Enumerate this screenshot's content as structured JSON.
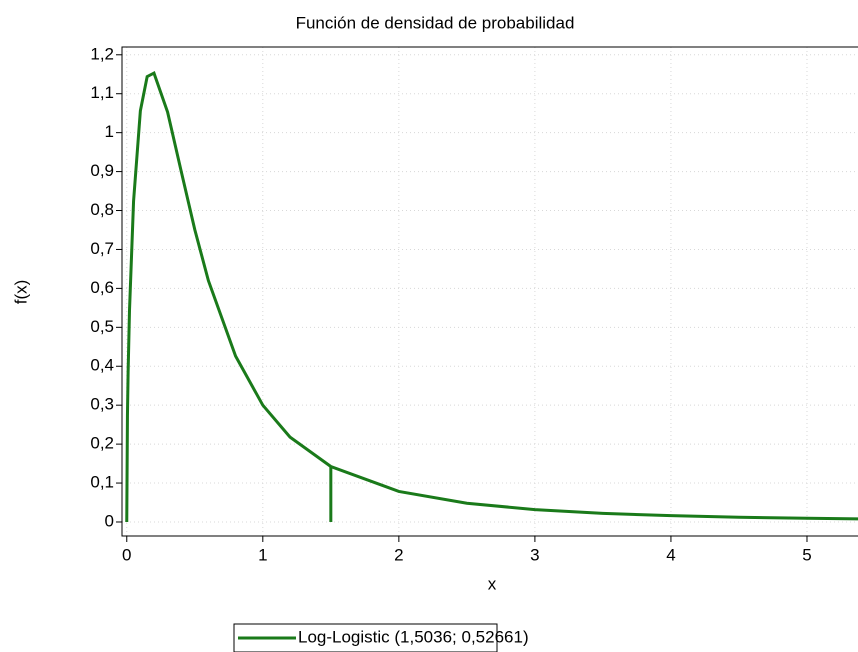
{
  "chart_data": {
    "type": "line",
    "title": "Función de densidad de probabilidad",
    "x_label": "x",
    "y_label": "f(x)",
    "x": [
      0,
      0.005,
      0.01,
      0.02,
      0.05,
      0.1,
      0.15,
      0.2,
      0.3,
      0.4,
      0.5,
      0.6,
      0.8,
      1.0,
      1.2,
      1.5,
      2,
      2.5,
      3,
      3.5,
      4,
      4.5,
      5,
      5.375
    ],
    "series": [
      {
        "name": "Log-Logistic  (1,5036; 0,52661)",
        "color": "#1a7a1a",
        "values": [
          0,
          0.273,
          0.386,
          0.542,
          0.824,
          1.056,
          1.144,
          1.153,
          1.053,
          0.901,
          0.751,
          0.62,
          0.426,
          0.3,
          0.218,
          0.1425,
          0.0785,
          0.0481,
          0.0318,
          0.0222,
          0.0162,
          0.0123,
          0.0095,
          0.008
        ]
      }
    ],
    "marker": {
      "x": 1.5,
      "y": 0.1425
    },
    "xlim": [
      -0.035,
      5.375
    ],
    "ylim": [
      -0.036,
      1.22
    ],
    "xticks": [
      0,
      1,
      2,
      3,
      4,
      5
    ],
    "yticks": [
      0,
      {
        "value": 0.1,
        "label": "0,1"
      },
      {
        "value": 0.2,
        "label": "0,2"
      },
      {
        "value": 0.3,
        "label": "0,3"
      },
      {
        "value": 0.4,
        "label": "0,4"
      },
      {
        "value": 0.5,
        "label": "0,5"
      },
      {
        "value": 0.6,
        "label": "0,6"
      },
      {
        "value": 0.7,
        "label": "0,7"
      },
      {
        "value": 0.8,
        "label": "0,8"
      },
      {
        "value": 0.9,
        "label": "0,9"
      },
      1,
      {
        "value": 1.1,
        "label": "1,1"
      },
      {
        "value": 1.2,
        "label": "1,2"
      }
    ],
    "grid": true,
    "legend": "bottom"
  }
}
